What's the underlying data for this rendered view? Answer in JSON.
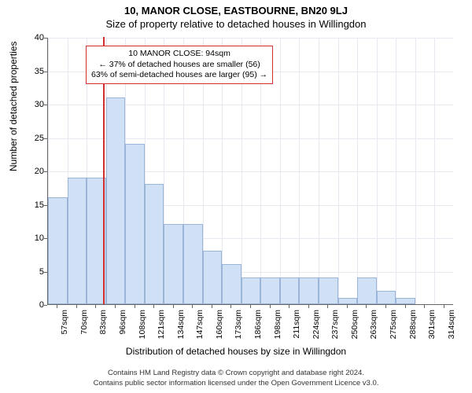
{
  "titles": {
    "main": "10, MANOR CLOSE, EASTBOURNE, BN20 9LJ",
    "sub": "Size of property relative to detached houses in Willingdon"
  },
  "chart": {
    "type": "histogram",
    "ylabel": "Number of detached properties",
    "xlabel": "Distribution of detached houses by size in Willingdon",
    "ylim": [
      0,
      40
    ],
    "ytick_step": 5,
    "yticks": [
      0,
      5,
      10,
      15,
      20,
      25,
      30,
      35,
      40
    ],
    "x_categories": [
      "57sqm",
      "70sqm",
      "83sqm",
      "96sqm",
      "108sqm",
      "121sqm",
      "134sqm",
      "147sqm",
      "160sqm",
      "173sqm",
      "186sqm",
      "198sqm",
      "211sqm",
      "224sqm",
      "237sqm",
      "250sqm",
      "263sqm",
      "275sqm",
      "288sqm",
      "301sqm",
      "314sqm"
    ],
    "values": [
      16,
      19,
      19,
      31,
      24,
      18,
      12,
      12,
      8,
      6,
      4,
      4,
      4,
      4,
      4,
      1,
      4,
      2,
      1,
      0,
      0
    ],
    "bar_fill": "#d0e0f5",
    "bar_stroke": "#9ab5d8",
    "grid_color": "#e8e8f0",
    "axis_color": "#666666",
    "background_color": "#ffffff",
    "marker": {
      "position_category_index": 2.85,
      "color": "#d03030"
    },
    "annotation": {
      "line1": "10 MANOR CLOSE: 94sqm",
      "line2": "← 37% of detached houses are smaller (56)",
      "line3": "63% of semi-detached houses are larger (95) →",
      "border_color": "#d03030",
      "fontsize": 10.5
    }
  },
  "footer": {
    "line1": "Contains HM Land Registry data © Crown copyright and database right 2024.",
    "line2": "Contains public sector information licensed under the Open Government Licence v3.0."
  }
}
